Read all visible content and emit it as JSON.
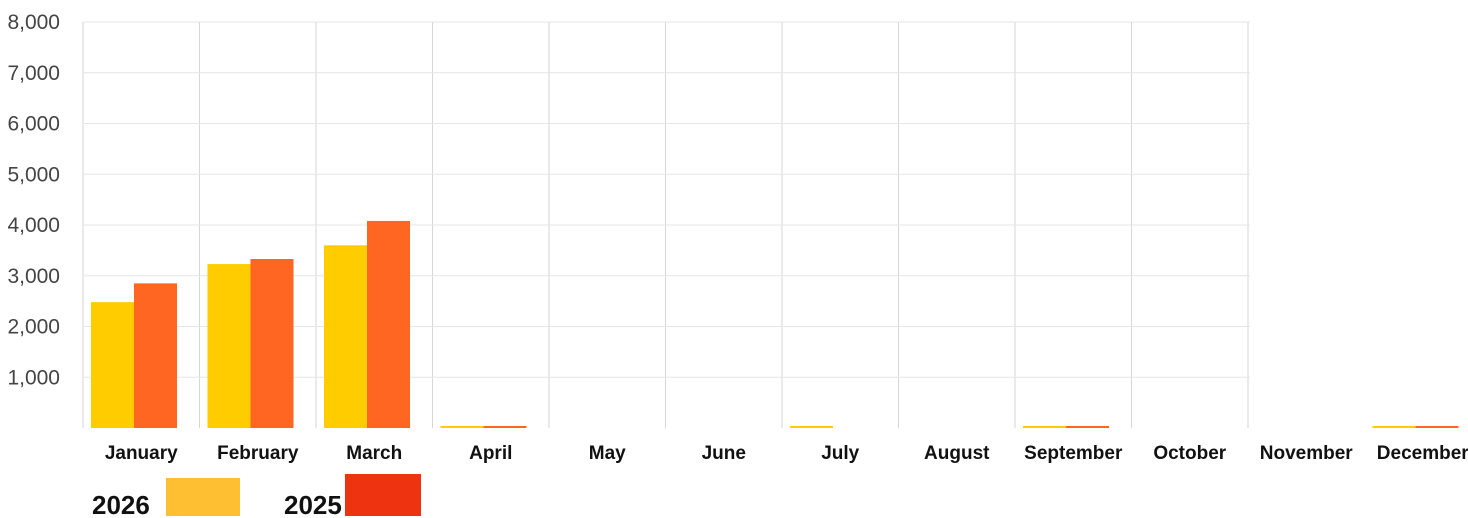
{
  "chart_data": {
    "type": "bar",
    "categories": [
      "January",
      "February",
      "March",
      "April",
      "May",
      "June",
      "July",
      "August",
      "September",
      "October",
      "November",
      "December"
    ],
    "series": [
      {
        "name": "2026",
        "color": "#ffcc00",
        "values": [
          2480,
          3230,
          3600,
          0,
          null,
          null,
          0,
          null,
          0,
          null,
          null,
          0
        ]
      },
      {
        "name": "2025",
        "color": "#ff6622",
        "values": [
          2850,
          3330,
          4080,
          0,
          null,
          null,
          null,
          null,
          0,
          null,
          null,
          0
        ]
      }
    ],
    "ylim": [
      0,
      8000
    ],
    "yticks": [
      {
        "value": 1000,
        "label": "1,000"
      },
      {
        "value": 2000,
        "label": "2,000"
      },
      {
        "value": 3000,
        "label": "3,000"
      },
      {
        "value": 4000,
        "label": "4,000"
      },
      {
        "value": 5000,
        "label": "5,000"
      },
      {
        "value": 6000,
        "label": "6,000"
      },
      {
        "value": 7000,
        "label": "7,000"
      },
      {
        "value": 8000,
        "label": "8,000"
      }
    ],
    "title": "",
    "xlabel": "",
    "ylabel": "",
    "grid": true,
    "legend_position": "bottom-left",
    "legend_swatch_colors": [
      "#ffbf33",
      "#ee3311"
    ]
  }
}
